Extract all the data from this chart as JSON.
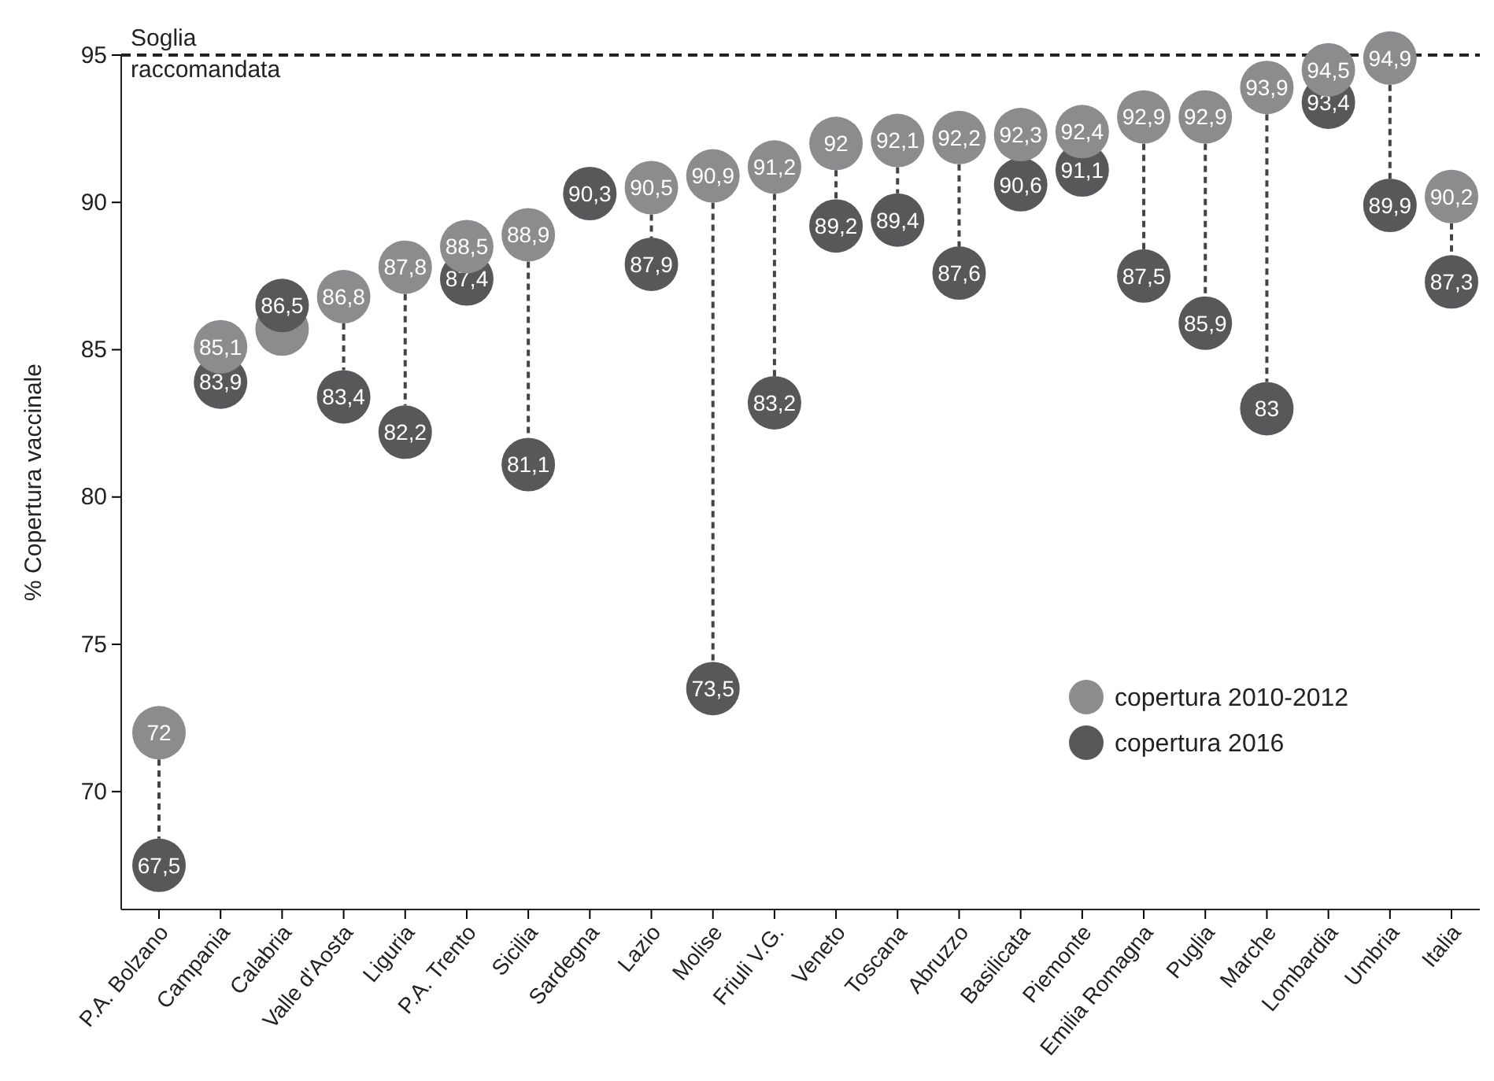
{
  "chart_data": {
    "type": "scatter",
    "ylabel": "% Copertura vaccinale",
    "categories": [
      "P.A. Bolzano",
      "Campania",
      "Calabria",
      "Valle d'Aosta",
      "Liguria",
      "P.A. Trento",
      "Sicilia",
      "Sardegna",
      "Lazio",
      "Molise",
      "Friuli V.G.",
      "Veneto",
      "Toscana",
      "Abruzzo",
      "Basilicata",
      "Piemonte",
      "Emilia Romagna",
      "Puglia",
      "Marche",
      "Lombardia",
      "Umbria",
      "Italia"
    ],
    "series": [
      {
        "name": "copertura 2010-2012",
        "color": "#8c8c8e",
        "values": [
          72,
          85.1,
          85.7,
          86.8,
          87.8,
          88.5,
          88.9,
          null,
          90.5,
          90.9,
          91.2,
          92,
          92.1,
          92.2,
          92.3,
          92.4,
          92.9,
          92.9,
          93.9,
          94.5,
          94.9,
          90.2
        ],
        "value_labels": [
          "72",
          "85,1",
          null,
          "86,8",
          "87,8",
          "88,5",
          "88,9",
          null,
          "90,5",
          "90,9",
          "91,2",
          "92",
          "92,1",
          "92,2",
          "92,3",
          "92,4",
          "92,9",
          "92,9",
          "93,9",
          "94,5",
          "94,9",
          "90,2"
        ]
      },
      {
        "name": "copertura 2016",
        "color": "#58585a",
        "values": [
          67.5,
          83.9,
          86.5,
          83.4,
          82.2,
          87.4,
          81.1,
          90.3,
          87.9,
          73.5,
          83.2,
          89.2,
          89.4,
          87.6,
          90.6,
          91.1,
          87.5,
          85.9,
          83,
          93.4,
          89.9,
          87.3
        ],
        "value_labels": [
          "67,5",
          "83,9",
          "86,5",
          "83,4",
          "82,2",
          "87,4",
          "81,1",
          "90,3",
          "87,9",
          "73,5",
          "83,2",
          "89,2",
          "89,4",
          "87,6",
          "90,6",
          "91,1",
          "87,5",
          "85,9",
          "83",
          "93,4",
          "89,9",
          "87,3"
        ]
      }
    ],
    "ylim": [
      66,
      95
    ],
    "yticks": [
      70,
      75,
      80,
      85,
      90,
      95
    ],
    "ref_lines": [
      {
        "axis": "y",
        "value": 95,
        "label": "Soglia\nraccomandata",
        "line_style": "dashed",
        "color": "#222222"
      }
    ],
    "marker": "circle",
    "legend": "bottom right",
    "grid": false
  }
}
